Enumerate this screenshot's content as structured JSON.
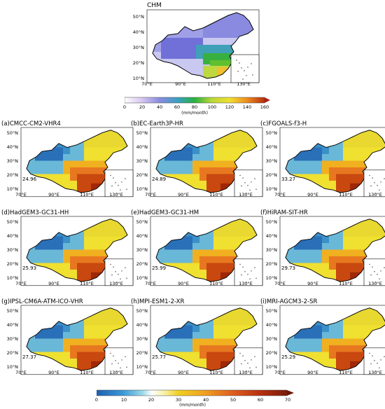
{
  "top": {
    "title": "CHM",
    "yticks": [
      "50°N",
      "40°N",
      "30°N",
      "20°N",
      "10°N"
    ],
    "xticks": [
      "70°E",
      "90°E",
      "110°E",
      "130°E"
    ]
  },
  "colorbar_top": {
    "ticks": [
      "0",
      "20",
      "40",
      "60",
      "80",
      "100",
      "120",
      "140",
      "160"
    ],
    "unit": "(mm/month)"
  },
  "panels": [
    {
      "title": "(a)CMCC-CM2-VHR4",
      "value": "24.96"
    },
    {
      "title": "(b)EC-Earth3P-HR",
      "value": "24.89"
    },
    {
      "title": "(c)FGOALS-f3-H",
      "value": "33.27"
    },
    {
      "title": "(d)HadGEM3-GC31-HH",
      "value": "25.93"
    },
    {
      "title": "(e)HadGEM3-GC31-HM",
      "value": "25.99"
    },
    {
      "title": "(f)HiRAM-SIT-HR",
      "value": "29.73"
    },
    {
      "title": "(g)IPSL-CM6A-ATM-ICO-VHR",
      "value": "27.37"
    },
    {
      "title": "(h)MPI-ESM1-2-XR",
      "value": "25.77"
    },
    {
      "title": "(i)MRI-AGCM3-2-SR",
      "value": "25.29"
    }
  ],
  "small_axes": {
    "yticks": [
      "50°N",
      "40°N",
      "30°N",
      "20°N",
      "10°N"
    ],
    "xticks": [
      "70°E",
      "90°E",
      "110°E",
      "130°E"
    ]
  },
  "colorbar_bottom": {
    "ticks": [
      "0",
      "10",
      "20",
      "30",
      "40",
      "50",
      "60",
      "70"
    ],
    "unit": "(mm/month)"
  }
}
